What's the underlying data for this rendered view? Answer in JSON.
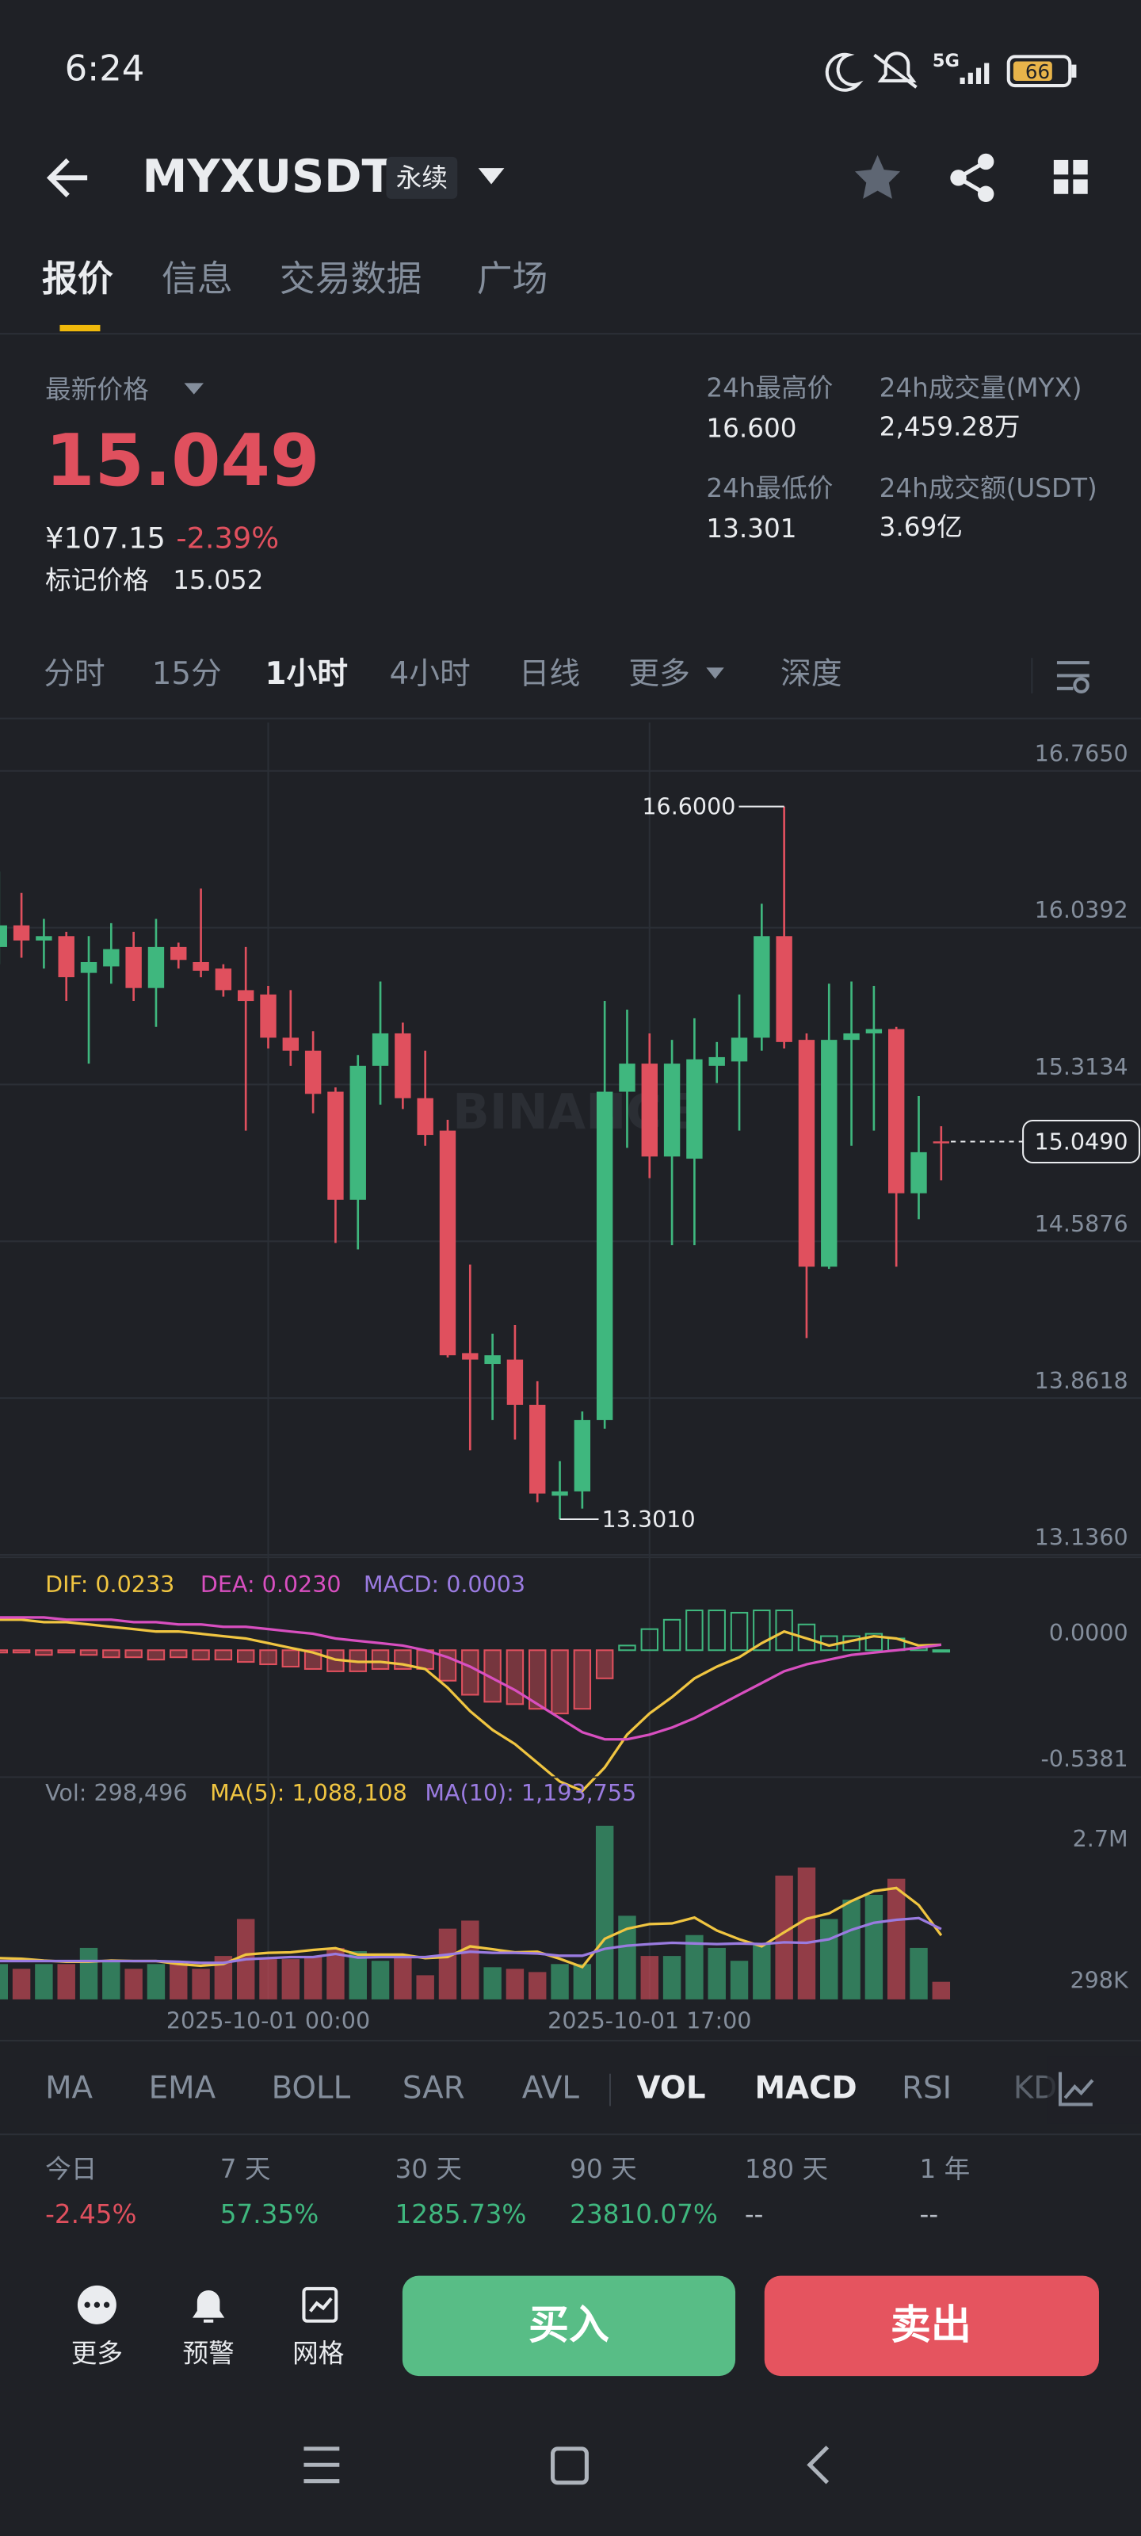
{
  "status_bar": {
    "time": "6:24",
    "battery": "66"
  },
  "header": {
    "symbol": "MYXUSDT",
    "badge": "永续"
  },
  "tabs": [
    "报价",
    "信息",
    "交易数据",
    "广场"
  ],
  "ticker": {
    "last_price_label": "最新价格",
    "last_price": "15.049",
    "cny_price": "¥107.15",
    "change": "-2.39%",
    "mark_price_label": "标记价格",
    "mark_price": "15.052",
    "stats": [
      {
        "label": "24h最高价",
        "value": "16.600"
      },
      {
        "label": "24h成交量(MYX)",
        "value": "2,459.28万"
      },
      {
        "label": "24h最低价",
        "value": "13.301"
      },
      {
        "label": "24h成交额(USDT)",
        "value": "3.69亿"
      }
    ]
  },
  "intervals": [
    "分时",
    "15分",
    "1小时",
    "4小时",
    "日线",
    "更多",
    "深度"
  ],
  "chart_data": [
    {
      "type": "candlestick",
      "watermark": "BINANCE",
      "up_color": "#3fb77e",
      "down_color": "#e0505e",
      "categories": [
        null,
        null,
        null,
        null,
        null,
        null,
        null,
        null,
        null,
        null,
        null,
        null,
        "2025-10-01 00:00",
        null,
        null,
        null,
        null,
        null,
        null,
        null,
        null,
        null,
        null,
        null,
        null,
        null,
        null,
        null,
        null,
        "2025-10-01 17:00",
        null,
        null,
        null,
        null,
        null,
        null,
        null,
        null,
        null,
        null,
        null,
        null,
        null
      ],
      "open": [
        15.95,
        16.05,
        15.98,
        16.0,
        15.83,
        15.86,
        15.95,
        15.76,
        15.95,
        15.88,
        15.85,
        15.75,
        15.73,
        15.53,
        15.47,
        15.28,
        14.78,
        15.4,
        15.55,
        15.25,
        15.1,
        14.07,
        14.02,
        14.04,
        13.83,
        13.41,
        13.43,
        13.76,
        15.28,
        15.41,
        14.98,
        14.97,
        15.4,
        15.42,
        15.53,
        16.0,
        15.52,
        14.47,
        15.52,
        15.55,
        15.57,
        14.81,
        15.05
      ],
      "high": [
        16.3,
        16.2,
        16.08,
        16.02,
        16.0,
        16.06,
        16.02,
        16.08,
        15.97,
        16.22,
        15.87,
        15.95,
        15.77,
        15.75,
        15.56,
        15.3,
        15.45,
        15.79,
        15.6,
        15.47,
        15.15,
        14.48,
        14.16,
        14.2,
        13.94,
        13.57,
        13.8,
        15.7,
        15.66,
        15.55,
        15.52,
        15.62,
        15.51,
        15.73,
        16.15,
        16.6,
        15.55,
        15.78,
        15.79,
        15.77,
        15.58,
        15.26,
        15.12
      ],
      "low": [
        15.87,
        15.9,
        15.85,
        15.7,
        15.41,
        15.78,
        15.7,
        15.58,
        15.85,
        15.81,
        15.72,
        15.1,
        15.48,
        15.4,
        15.18,
        14.58,
        14.55,
        15.22,
        15.2,
        15.03,
        14.05,
        13.62,
        13.76,
        13.67,
        13.38,
        13.301,
        13.35,
        13.72,
        15.02,
        14.88,
        14.57,
        14.57,
        15.32,
        15.1,
        15.47,
        15.48,
        14.14,
        14.46,
        15.03,
        15.1,
        14.47,
        14.69,
        14.87
      ],
      "close": [
        16.05,
        15.98,
        16.0,
        15.81,
        15.88,
        15.94,
        15.76,
        15.95,
        15.89,
        15.84,
        15.75,
        15.7,
        15.53,
        15.47,
        15.27,
        14.78,
        15.4,
        15.55,
        15.25,
        15.08,
        14.06,
        14.04,
        14.06,
        13.83,
        13.42,
        13.43,
        13.76,
        15.28,
        15.41,
        14.98,
        15.41,
        15.43,
        15.44,
        15.53,
        16.0,
        15.51,
        14.47,
        15.52,
        15.55,
        15.57,
        14.81,
        15.0,
        15.049
      ],
      "high_label": "16.6000",
      "low_label": "13.3010",
      "last_label": "15.0490",
      "ylim": [
        13.136,
        16.989
      ],
      "yticks": [
        {
          "value": 16.765,
          "label": "16.7650"
        },
        {
          "value": 16.0392,
          "label": "16.0392"
        },
        {
          "value": 15.3134,
          "label": "15.3134"
        },
        {
          "value": 14.5876,
          "label": "14.5876"
        },
        {
          "value": 13.8618,
          "label": "13.8618"
        },
        {
          "value": 13.136,
          "label": "13.1360"
        }
      ],
      "grid": true
    },
    {
      "type": "macd",
      "legend": [
        "DIF: 0.0233",
        "DEA: 0.0230",
        "MACD: 0.0003"
      ],
      "series": [
        {
          "name": "DIF",
          "color": "#f0c541",
          "values": [
            0.13,
            0.13,
            0.12,
            0.12,
            0.11,
            0.1,
            0.09,
            0.08,
            0.08,
            0.07,
            0.06,
            0.05,
            0.03,
            0.01,
            -0.01,
            -0.04,
            -0.05,
            -0.05,
            -0.06,
            -0.08,
            -0.16,
            -0.26,
            -0.34,
            -0.4,
            -0.48,
            -0.56,
            -0.6,
            -0.5,
            -0.36,
            -0.27,
            -0.2,
            -0.12,
            -0.07,
            -0.03,
            0.03,
            0.08,
            0.05,
            0.02,
            0.04,
            0.06,
            0.05,
            0.02,
            0.0233
          ]
        },
        {
          "name": "DEA",
          "color": "#d84fc0",
          "values": [
            0.14,
            0.14,
            0.14,
            0.13,
            0.13,
            0.13,
            0.12,
            0.12,
            0.11,
            0.11,
            0.1,
            0.1,
            0.09,
            0.08,
            0.07,
            0.05,
            0.04,
            0.03,
            0.02,
            0.0,
            -0.03,
            -0.07,
            -0.12,
            -0.17,
            -0.23,
            -0.29,
            -0.35,
            -0.38,
            -0.38,
            -0.36,
            -0.33,
            -0.29,
            -0.24,
            -0.19,
            -0.14,
            -0.09,
            -0.06,
            -0.04,
            -0.02,
            -0.01,
            0.0,
            0.01,
            0.023
          ]
        },
        {
          "name": "MACD",
          "color": "#9a7be0",
          "values": [
            -0.01,
            -0.01,
            -0.02,
            -0.01,
            -0.02,
            -0.03,
            -0.03,
            -0.04,
            -0.03,
            -0.04,
            -0.04,
            -0.05,
            -0.06,
            -0.07,
            -0.08,
            -0.09,
            -0.09,
            -0.08,
            -0.08,
            -0.08,
            -0.13,
            -0.19,
            -0.22,
            -0.23,
            -0.25,
            -0.27,
            -0.25,
            -0.12,
            0.02,
            0.09,
            0.13,
            0.17,
            0.17,
            0.16,
            0.17,
            0.17,
            0.11,
            0.06,
            0.06,
            0.07,
            0.05,
            0.01,
            0.0003
          ]
        }
      ],
      "ylim": [
        -0.545,
        0.386
      ],
      "yticks": [
        {
          "value": 0,
          "label": "0.0000"
        },
        {
          "value": -0.5381,
          "label": "-0.5381"
        }
      ]
    },
    {
      "type": "bar",
      "legend": [
        "Vol: 298,496",
        "MA(5): 1,088,108",
        "MA(10): 1,193,755"
      ],
      "values": [
        600000,
        519000,
        600000,
        600000,
        874000,
        655000,
        519000,
        600000,
        600000,
        519000,
        737000,
        1365000,
        683000,
        683000,
        737000,
        874000,
        819000,
        655000,
        737000,
        410000,
        1201000,
        1338000,
        546000,
        519000,
        464000,
        600000,
        600000,
        2948000,
        1420000,
        737000,
        737000,
        1092000,
        874000,
        655000,
        956000,
        2102000,
        2239000,
        1365000,
        1693000,
        1775000,
        2048000,
        874000,
        298496
      ],
      "series": [
        {
          "name": "MA(5)",
          "color": "#f0c541",
          "values": [
            700000,
            690000,
            660000,
            640000,
            640000,
            660000,
            650000,
            650000,
            600000,
            570000,
            600000,
            760000,
            790000,
            800000,
            840000,
            870000,
            760000,
            760000,
            760000,
            700000,
            720000,
            900000,
            850000,
            800000,
            810000,
            690000,
            550000,
            1030000,
            1200000,
            1280000,
            1290000,
            1390000,
            1170000,
            1020000,
            900000,
            1140000,
            1370000,
            1460000,
            1670000,
            1840000,
            1890000,
            1600000,
            1088108
          ]
        },
        {
          "name": "MA(10)",
          "color": "#9a7be0",
          "values": [
            650000,
            650000,
            650000,
            650000,
            650000,
            650000,
            650000,
            650000,
            640000,
            620000,
            620000,
            680000,
            700000,
            720000,
            720000,
            770000,
            710000,
            720000,
            720000,
            720000,
            760000,
            810000,
            790000,
            790000,
            780000,
            740000,
            740000,
            860000,
            910000,
            940000,
            960000,
            950000,
            940000,
            950000,
            940000,
            970000,
            960000,
            1020000,
            1180000,
            1300000,
            1350000,
            1380000,
            1193755
          ]
        }
      ],
      "ylim": [
        0,
        3760000
      ],
      "yticks": [
        {
          "value": 2700000,
          "label": "2.7M"
        },
        {
          "value": 298000,
          "label": "298K"
        }
      ]
    }
  ],
  "indicators": [
    "MA",
    "EMA",
    "BOLL",
    "SAR",
    "AVL",
    "VOL",
    "MACD",
    "RSI",
    "KD"
  ],
  "performance": [
    {
      "label": "今日",
      "value": "-2.45%"
    },
    {
      "label": "7 天",
      "value": "57.35%"
    },
    {
      "label": "30 天",
      "value": "1285.73%"
    },
    {
      "label": "90 天",
      "value": "23810.07%"
    },
    {
      "label": "180 天",
      "value": "--"
    },
    {
      "label": "1 年",
      "value": "--"
    }
  ],
  "bottom_bar": {
    "tools": [
      "更多",
      "预警",
      "网格"
    ],
    "buy": "买入",
    "sell": "卖出"
  }
}
